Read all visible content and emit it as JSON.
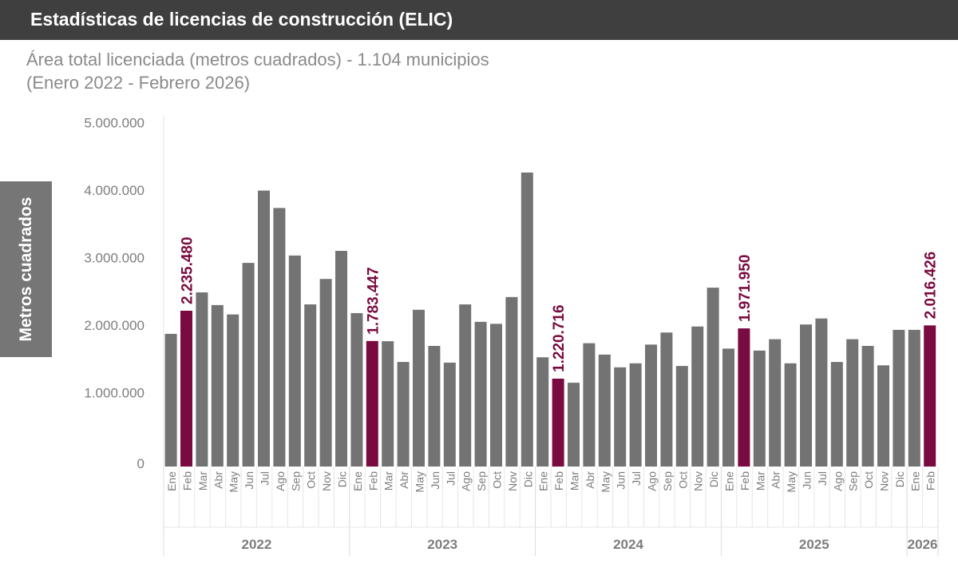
{
  "header": {
    "title": "Estadísticas de licencias de construcción (ELIC)"
  },
  "subtitle": {
    "line1": "Área total licenciada (metros cuadrados) - 1.104 municipios",
    "line2": "(Enero 2022 - Febrero 2026)"
  },
  "chart_data": {
    "type": "bar",
    "title": "Área total licenciada (metros cuadrados) - 1.104 municipios",
    "subtitle": "(Enero 2022 - Febrero 2026)",
    "ylabel": "Metros cuadrados",
    "ylim": [
      0,
      5000000
    ],
    "yticks": [
      0,
      1000000,
      2000000,
      3000000,
      4000000,
      5000000
    ],
    "ytick_labels": [
      "0",
      "1.000.000",
      "2.000.000",
      "3.000.000",
      "4.000.000",
      "5.000.000"
    ],
    "colors": {
      "default": "#737373",
      "highlight": "#7a0b40"
    },
    "grid": false,
    "years": [
      {
        "label": "2022",
        "months": [
          "Ene",
          "Feb",
          "Mar",
          "Abr",
          "May",
          "Jun",
          "Jul",
          "Ago",
          "Sep",
          "Oct",
          "Nov",
          "Dic"
        ],
        "values": [
          1890000,
          2235480,
          2510000,
          2320000,
          2180000,
          2950000,
          4030000,
          3770000,
          3060000,
          2330000,
          2710000,
          3130000
        ]
      },
      {
        "label": "2023",
        "months": [
          "Ene",
          "Feb",
          "Mar",
          "Abr",
          "May",
          "Jun",
          "Jul",
          "Ago",
          "Sep",
          "Oct",
          "Nov",
          "Dic"
        ],
        "values": [
          2200000,
          1783447,
          1780000,
          1470000,
          2250000,
          1710000,
          1460000,
          2330000,
          2070000,
          2040000,
          2440000,
          4300000
        ]
      },
      {
        "label": "2024",
        "months": [
          "Ene",
          "Feb",
          "Mar",
          "Abr",
          "May",
          "Jun",
          "Jul",
          "Ago",
          "Sep",
          "Oct",
          "Nov",
          "Dic"
        ],
        "values": [
          1540000,
          1220716,
          1160000,
          1750000,
          1580000,
          1390000,
          1450000,
          1730000,
          1910000,
          1410000,
          2000000,
          2580000
        ]
      },
      {
        "label": "2025",
        "months": [
          "Ene",
          "Feb",
          "Mar",
          "Abr",
          "May",
          "Jun",
          "Jul",
          "Ago",
          "Sep",
          "Oct",
          "Nov",
          "Dic"
        ],
        "values": [
          1670000,
          1971950,
          1640000,
          1810000,
          1450000,
          2030000,
          2120000,
          1470000,
          1810000,
          1710000,
          1420000,
          1950000
        ]
      },
      {
        "label": "2026",
        "months": [
          "Ene",
          "Feb"
        ],
        "values": [
          1950000,
          2016426
        ]
      }
    ],
    "highlighted": [
      {
        "year": "2022",
        "month": "Feb",
        "label": "2.235.480"
      },
      {
        "year": "2023",
        "month": "Feb",
        "label": "1.783.447"
      },
      {
        "year": "2024",
        "month": "Feb",
        "label": "1.220.716"
      },
      {
        "year": "2025",
        "month": "Feb",
        "label": "1.971.950"
      },
      {
        "year": "2026",
        "month": "Feb",
        "label": "2.016.426"
      }
    ]
  }
}
